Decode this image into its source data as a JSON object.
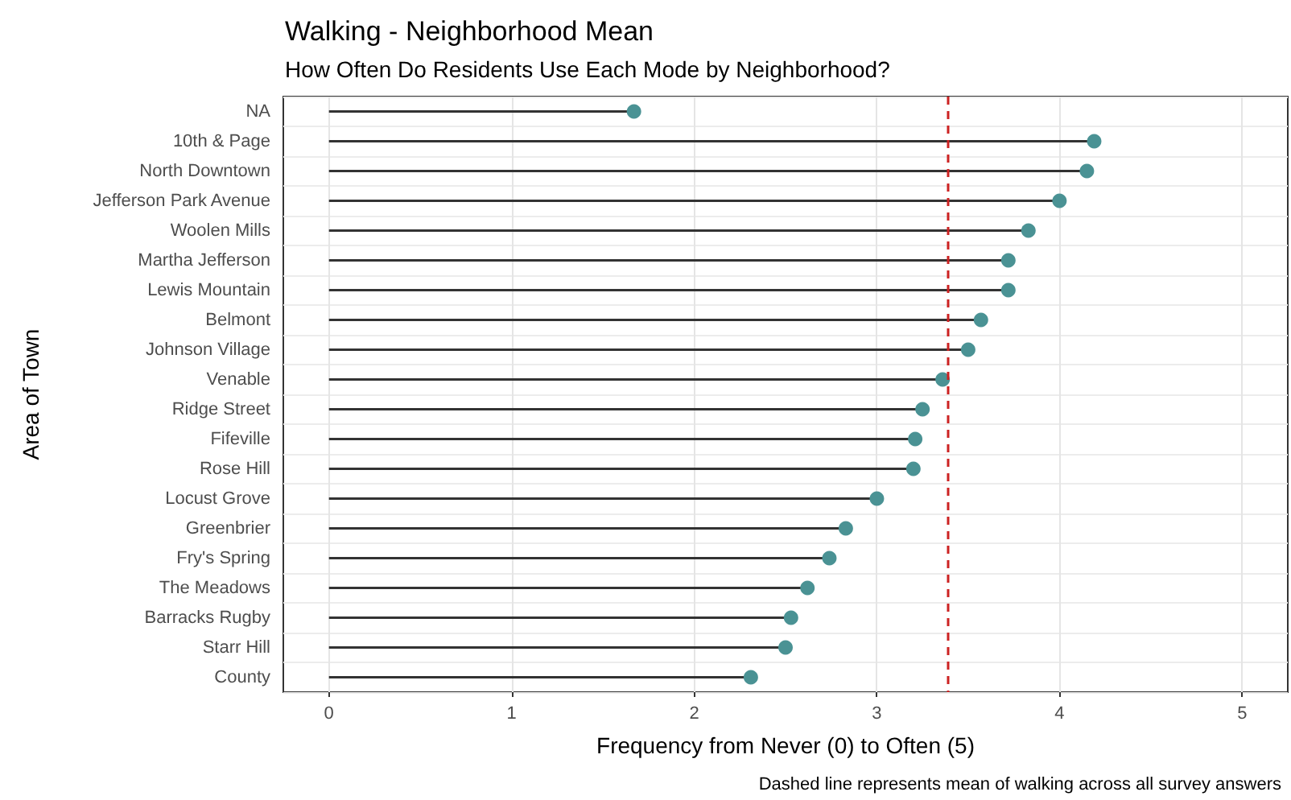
{
  "chart_data": {
    "type": "lollipop",
    "title": "Walking - Neighborhood Mean",
    "subtitle": "How Often Do Residents Use Each Mode by Neighborhood?",
    "xlabel": "Frequency from Never (0) to Often (5)",
    "ylabel": "Area of Town",
    "orientation": "horizontal",
    "categories": [
      "NA",
      "10th & Page",
      "North Downtown",
      "Jefferson Park Avenue",
      "Woolen Mills",
      "Martha Jefferson",
      "Lewis Mountain",
      "Belmont",
      "Johnson Village",
      "Venable",
      "Ridge Street",
      "Fifeville",
      "Rose Hill",
      "Locust Grove",
      "Greenbrier",
      "Fry's Spring",
      "The Meadows",
      "Barracks Rugby",
      "Starr Hill",
      "County"
    ],
    "values": [
      1.67,
      4.19,
      4.15,
      4.0,
      3.83,
      3.72,
      3.72,
      3.57,
      3.5,
      3.36,
      3.25,
      3.21,
      3.2,
      3.0,
      2.83,
      2.74,
      2.62,
      2.53,
      2.5,
      2.31
    ],
    "color": "#4a9294",
    "marker": "circle",
    "xlim": [
      -0.25,
      5.25
    ],
    "xticks": [
      0,
      1,
      2,
      3,
      4,
      5
    ],
    "grid": true,
    "ref_lines": [
      {
        "axis": "x",
        "value": 3.39,
        "color": "#cc2222",
        "line_style": "dashed"
      }
    ],
    "annotations": [
      "Dashed line represents mean of walking across all survey answers"
    ]
  }
}
